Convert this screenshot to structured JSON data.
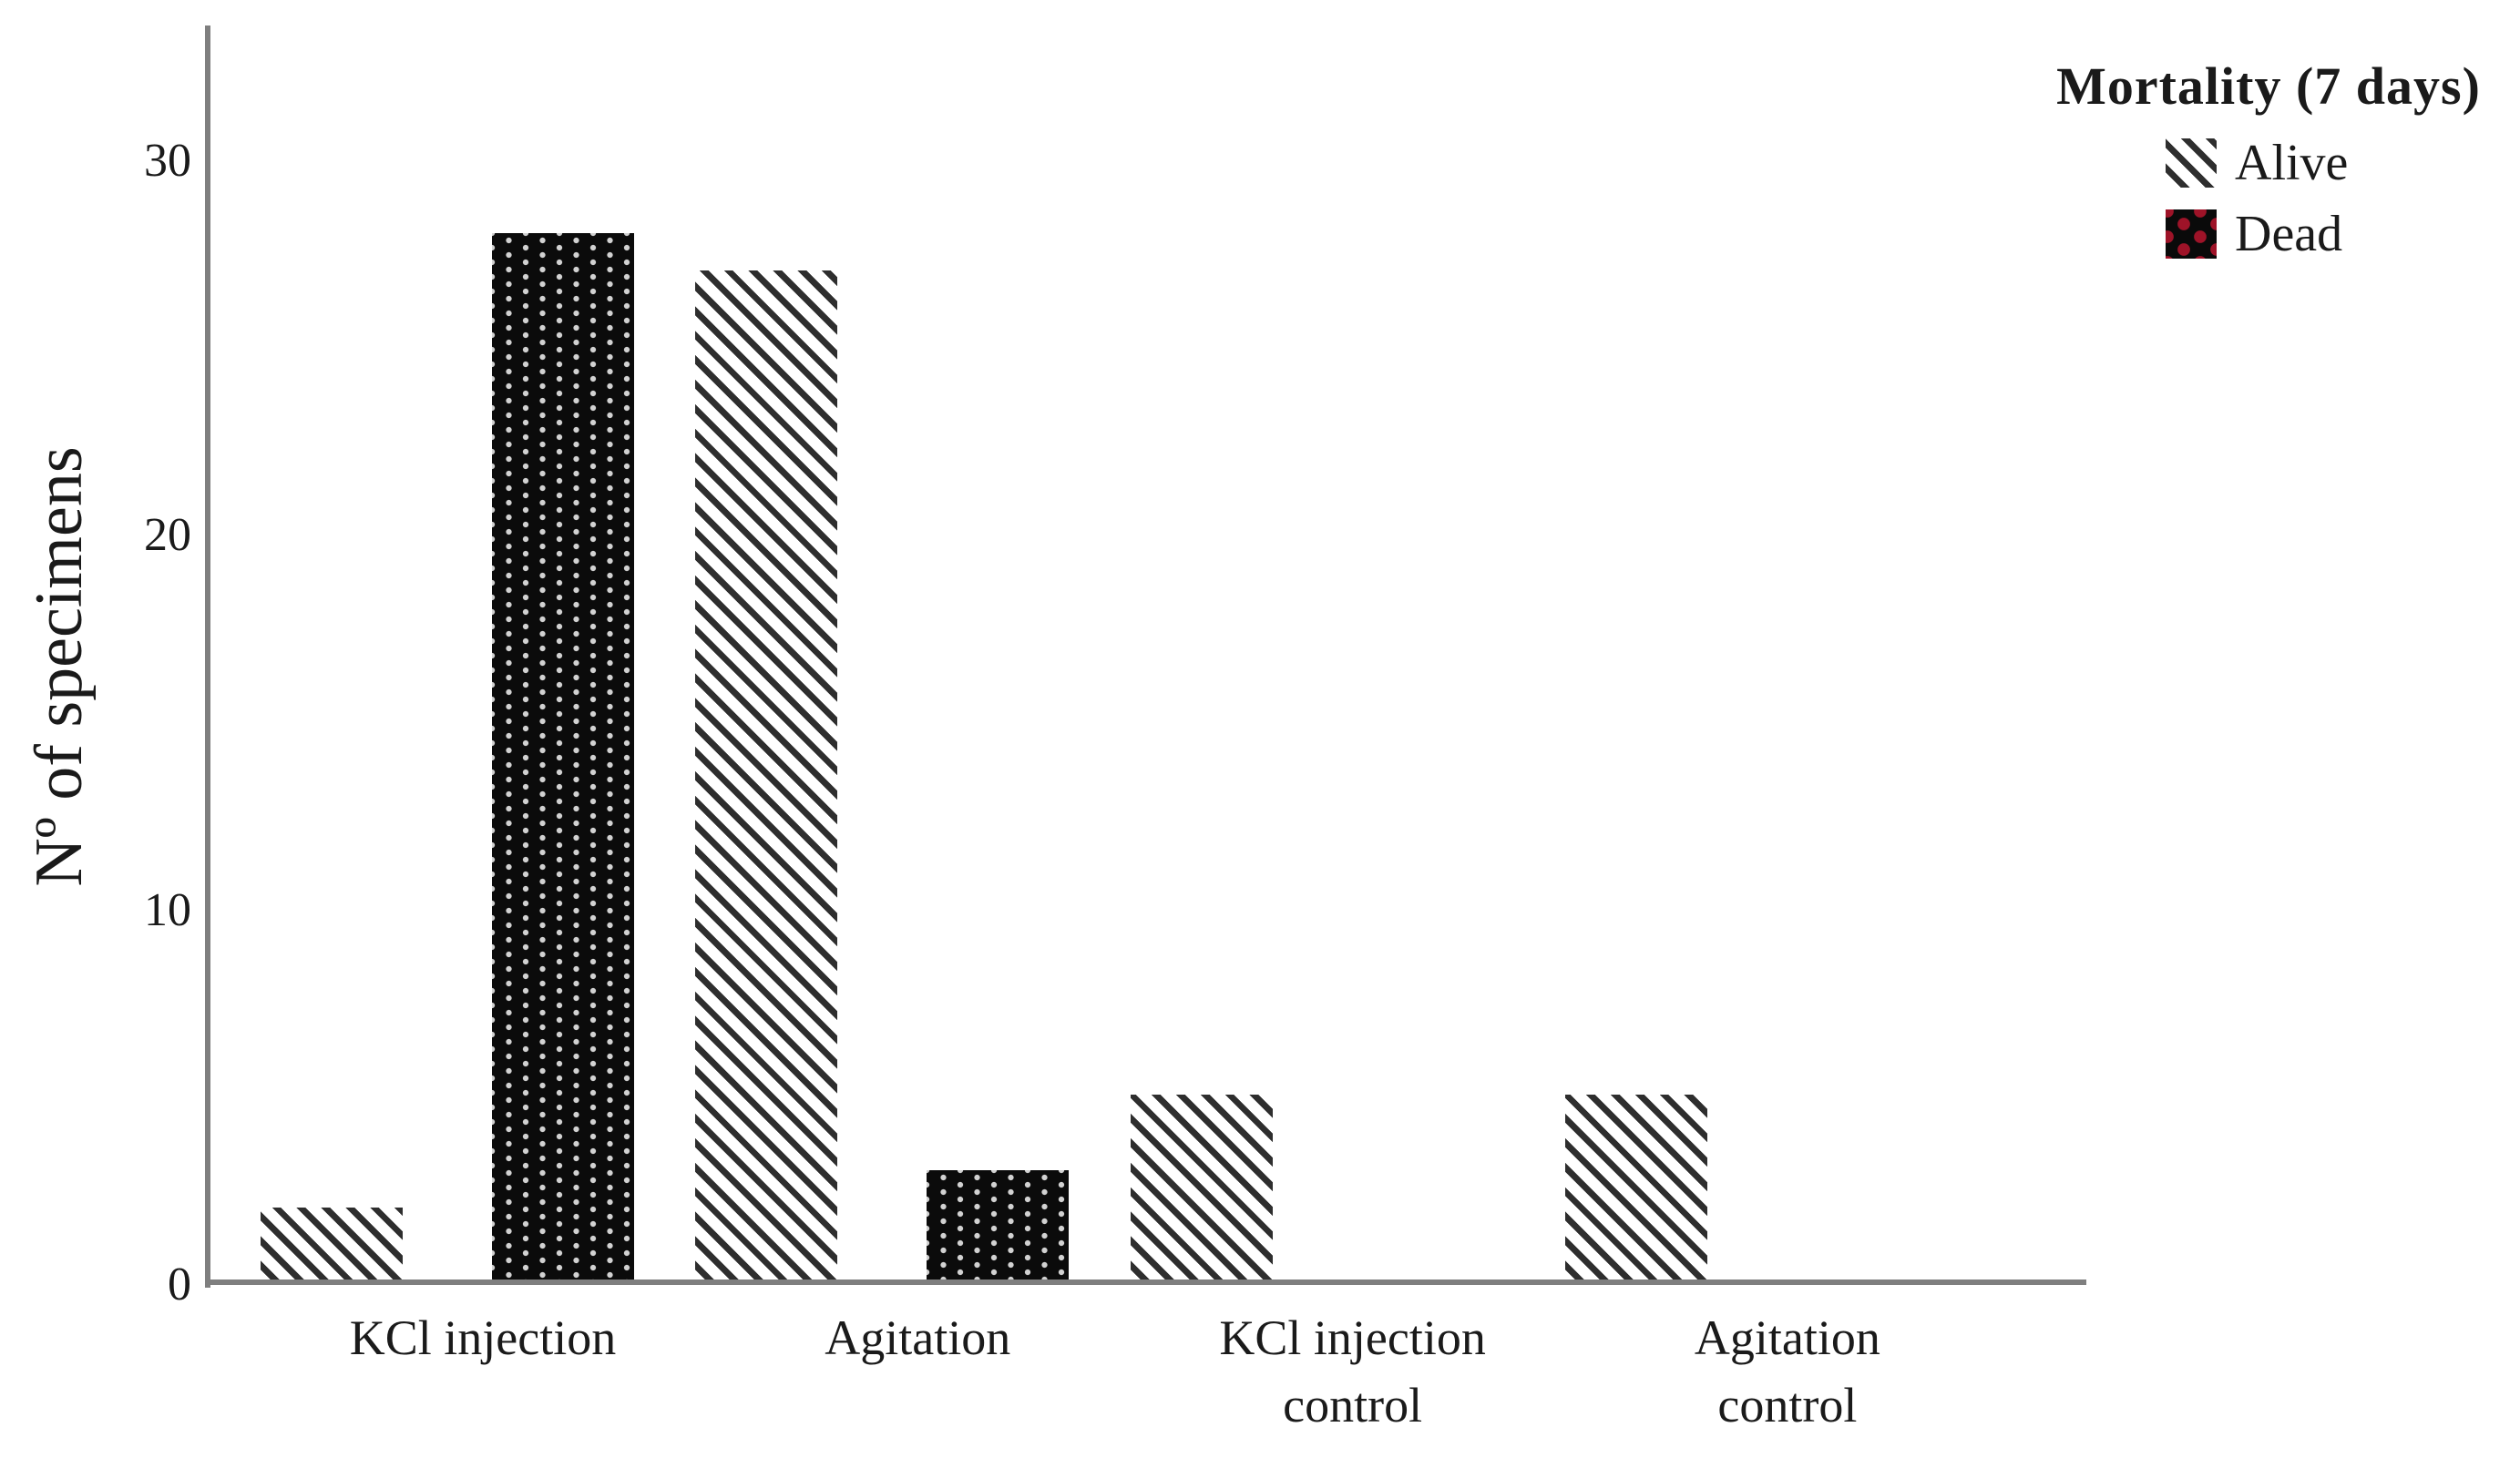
{
  "chart_data": {
    "type": "bar",
    "ylabel": "Nº of specimens",
    "categories": [
      "KCl injection",
      "Agitation",
      "KCl injection\ncontrol",
      "Agitation\ncontrol"
    ],
    "series": [
      {
        "name": "Alive",
        "pattern": "diagonal-stripes",
        "values": [
          2,
          27,
          5,
          5
        ]
      },
      {
        "name": "Dead",
        "pattern": "black-with-dots",
        "values": [
          28,
          3,
          0,
          0
        ]
      }
    ],
    "y_ticks": [
      0,
      10,
      20,
      30
    ],
    "ylim": [
      0,
      33.5
    ],
    "grid": false,
    "legend_title": "Mortality (7 days)",
    "legend_position": "top-right",
    "colors": {
      "axis": "#7f7f7f",
      "text": "#1a1a1a",
      "alive_stripe": "#2e2e2e",
      "dead_fill": "#0b0b0b",
      "dead_dot": "#d2d2d2",
      "legend_dead_dot": "#9e1328",
      "background": "#ffffff"
    }
  }
}
